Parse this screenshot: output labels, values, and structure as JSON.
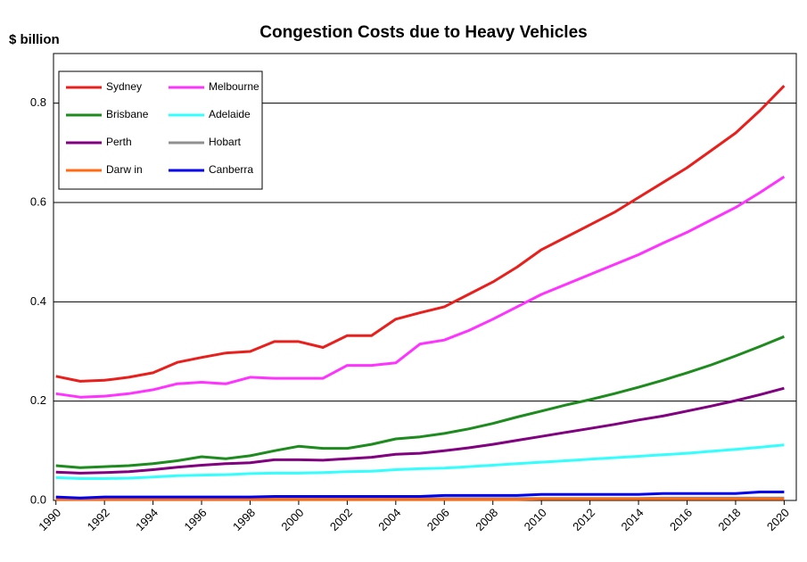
{
  "chart_data": {
    "type": "line",
    "title": "Congestion Costs due to Heavy Vehicles",
    "y_label": "$ billion",
    "x": [
      1990,
      1991,
      1992,
      1993,
      1994,
      1995,
      1996,
      1997,
      1998,
      1999,
      2000,
      2001,
      2002,
      2003,
      2004,
      2005,
      2006,
      2007,
      2008,
      2009,
      2010,
      2011,
      2012,
      2013,
      2014,
      2015,
      2016,
      2017,
      2018,
      2019,
      2020
    ],
    "xlim": [
      1989.9,
      2020.5
    ],
    "xticks": [
      1990,
      1992,
      1994,
      1996,
      1998,
      2000,
      2002,
      2004,
      2006,
      2008,
      2010,
      2012,
      2014,
      2016,
      2018,
      2020
    ],
    "ylim": [
      0,
      0.9
    ],
    "yticks": [
      {
        "value": 0,
        "label": "0.0"
      },
      0.2,
      0.4,
      0.6,
      0.8
    ],
    "grid": true,
    "legend": "top-left",
    "series": [
      {
        "name": "Sydney",
        "color": "#e8201d",
        "values": [
          0.25,
          0.24,
          0.242,
          0.248,
          0.257,
          0.278,
          0.288,
          0.297,
          0.3,
          0.32,
          0.32,
          0.308,
          0.332,
          0.332,
          0.365,
          0.378,
          0.39,
          0.415,
          0.44,
          0.47,
          0.505,
          0.53,
          0.555,
          0.58,
          0.61,
          0.64,
          0.67,
          0.705,
          0.74,
          0.785,
          0.835
        ]
      },
      {
        "name": "Melbourne",
        "color": "#ff33ff",
        "values": [
          0.215,
          0.208,
          0.21,
          0.215,
          0.223,
          0.235,
          0.238,
          0.235,
          0.248,
          0.246,
          0.246,
          0.246,
          0.272,
          0.272,
          0.277,
          0.315,
          0.323,
          0.342,
          0.365,
          0.39,
          0.415,
          0.435,
          0.455,
          0.475,
          0.495,
          0.518,
          0.54,
          0.565,
          0.59,
          0.62,
          0.652
        ]
      },
      {
        "name": "Brisbane",
        "color": "#1e8b1e",
        "values": [
          0.07,
          0.066,
          0.068,
          0.07,
          0.074,
          0.08,
          0.088,
          0.084,
          0.09,
          0.1,
          0.109,
          0.105,
          0.105,
          0.113,
          0.124,
          0.128,
          0.135,
          0.144,
          0.155,
          0.168,
          0.18,
          0.192,
          0.203,
          0.215,
          0.228,
          0.242,
          0.257,
          0.273,
          0.291,
          0.31,
          0.33
        ]
      },
      {
        "name": "Adelaide",
        "color": "#33ffff",
        "values": [
          0.046,
          0.044,
          0.044,
          0.045,
          0.047,
          0.05,
          0.051,
          0.052,
          0.054,
          0.055,
          0.055,
          0.056,
          0.058,
          0.059,
          0.062,
          0.064,
          0.065,
          0.068,
          0.071,
          0.074,
          0.077,
          0.08,
          0.083,
          0.086,
          0.089,
          0.092,
          0.095,
          0.099,
          0.103,
          0.107,
          0.112
        ]
      },
      {
        "name": "Perth",
        "color": "#800080",
        "values": [
          0.057,
          0.055,
          0.056,
          0.058,
          0.062,
          0.067,
          0.071,
          0.074,
          0.076,
          0.082,
          0.082,
          0.081,
          0.084,
          0.087,
          0.093,
          0.095,
          0.1,
          0.106,
          0.113,
          0.121,
          0.129,
          0.137,
          0.145,
          0.153,
          0.162,
          0.17,
          0.18,
          0.19,
          0.201,
          0.213,
          0.226
        ]
      },
      {
        "name": "Hobart",
        "color": "#909090",
        "values": [
          0.003,
          0.003,
          0.003,
          0.003,
          0.003,
          0.003,
          0.003,
          0.003,
          0.003,
          0.003,
          0.003,
          0.003,
          0.003,
          0.003,
          0.003,
          0.003,
          0.004,
          0.004,
          0.004,
          0.004,
          0.004,
          0.004,
          0.004,
          0.004,
          0.004,
          0.005,
          0.005,
          0.005,
          0.005,
          0.005,
          0.005
        ]
      },
      {
        "name": "Darw in",
        "color": "#ff6a13",
        "values": [
          0.002,
          0.002,
          0.002,
          0.002,
          0.002,
          0.002,
          0.002,
          0.002,
          0.002,
          0.002,
          0.002,
          0.002,
          0.002,
          0.002,
          0.002,
          0.002,
          0.002,
          0.002,
          0.002,
          0.002,
          0.003,
          0.003,
          0.003,
          0.003,
          0.003,
          0.003,
          0.003,
          0.003,
          0.003,
          0.003,
          0.003
        ]
      },
      {
        "name": "Canberra",
        "color": "#0000ee",
        "values": [
          0.007,
          0.005,
          0.007,
          0.007,
          0.007,
          0.007,
          0.007,
          0.007,
          0.007,
          0.008,
          0.008,
          0.008,
          0.008,
          0.008,
          0.008,
          0.008,
          0.01,
          0.01,
          0.01,
          0.01,
          0.012,
          0.012,
          0.012,
          0.012,
          0.012,
          0.014,
          0.014,
          0.014,
          0.014,
          0.017,
          0.017
        ]
      }
    ]
  }
}
